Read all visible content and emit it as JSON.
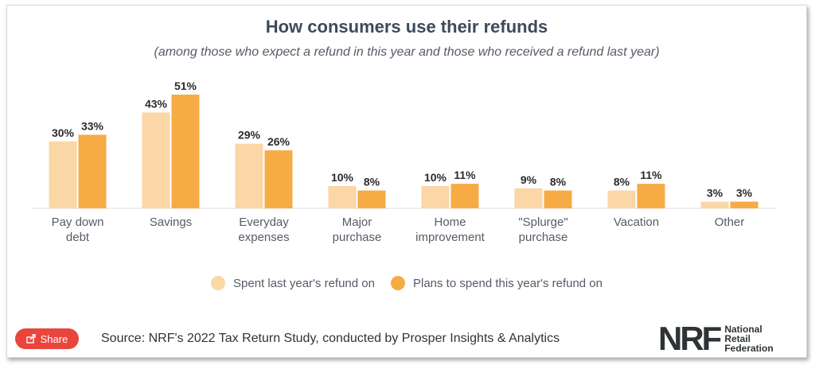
{
  "header": {
    "title": "How consumers use their refunds",
    "subtitle": "(among those who expect a refund in this year and those who received a refund last year)"
  },
  "chart_data": {
    "type": "bar",
    "title": "How consumers use their refunds",
    "subtitle": "(among those who expect a refund in this year and those who received a refund last year)",
    "categories": [
      [
        "Pay down",
        "debt"
      ],
      [
        "Savings"
      ],
      [
        "Everyday",
        "expenses"
      ],
      [
        "Major",
        "purchase"
      ],
      [
        "Home",
        "improvement"
      ],
      [
        "\"Splurge\"",
        "purchase"
      ],
      [
        "Vacation"
      ],
      [
        "Other"
      ]
    ],
    "series": [
      {
        "name": "Spent last year's refund on",
        "color": "#fbd6a6",
        "values": [
          30,
          43,
          29,
          10,
          10,
          9,
          8,
          3
        ]
      },
      {
        "name": "Plans to spend this year's refund on",
        "color": "#f7ab45",
        "values": [
          33,
          51,
          26,
          8,
          11,
          8,
          11,
          3
        ]
      }
    ],
    "value_suffix": "%",
    "ylim": [
      0,
      55
    ],
    "legend_position": "bottom-center",
    "grid": false
  },
  "legend": {
    "items": [
      {
        "label": "Spent last year's refund on",
        "color": "#fbd6a6"
      },
      {
        "label": "Plans to spend this year's refund on",
        "color": "#f7ab45"
      }
    ]
  },
  "share": {
    "label": "Share",
    "icon": "share-icon",
    "color": "#e8453c"
  },
  "source": {
    "text": "Source: NRF's 2022 Tax Return Study, conducted by Prosper Insights & Analytics"
  },
  "logo": {
    "mark": "NRF",
    "lines": [
      "National",
      "Retail",
      "Federation"
    ]
  }
}
